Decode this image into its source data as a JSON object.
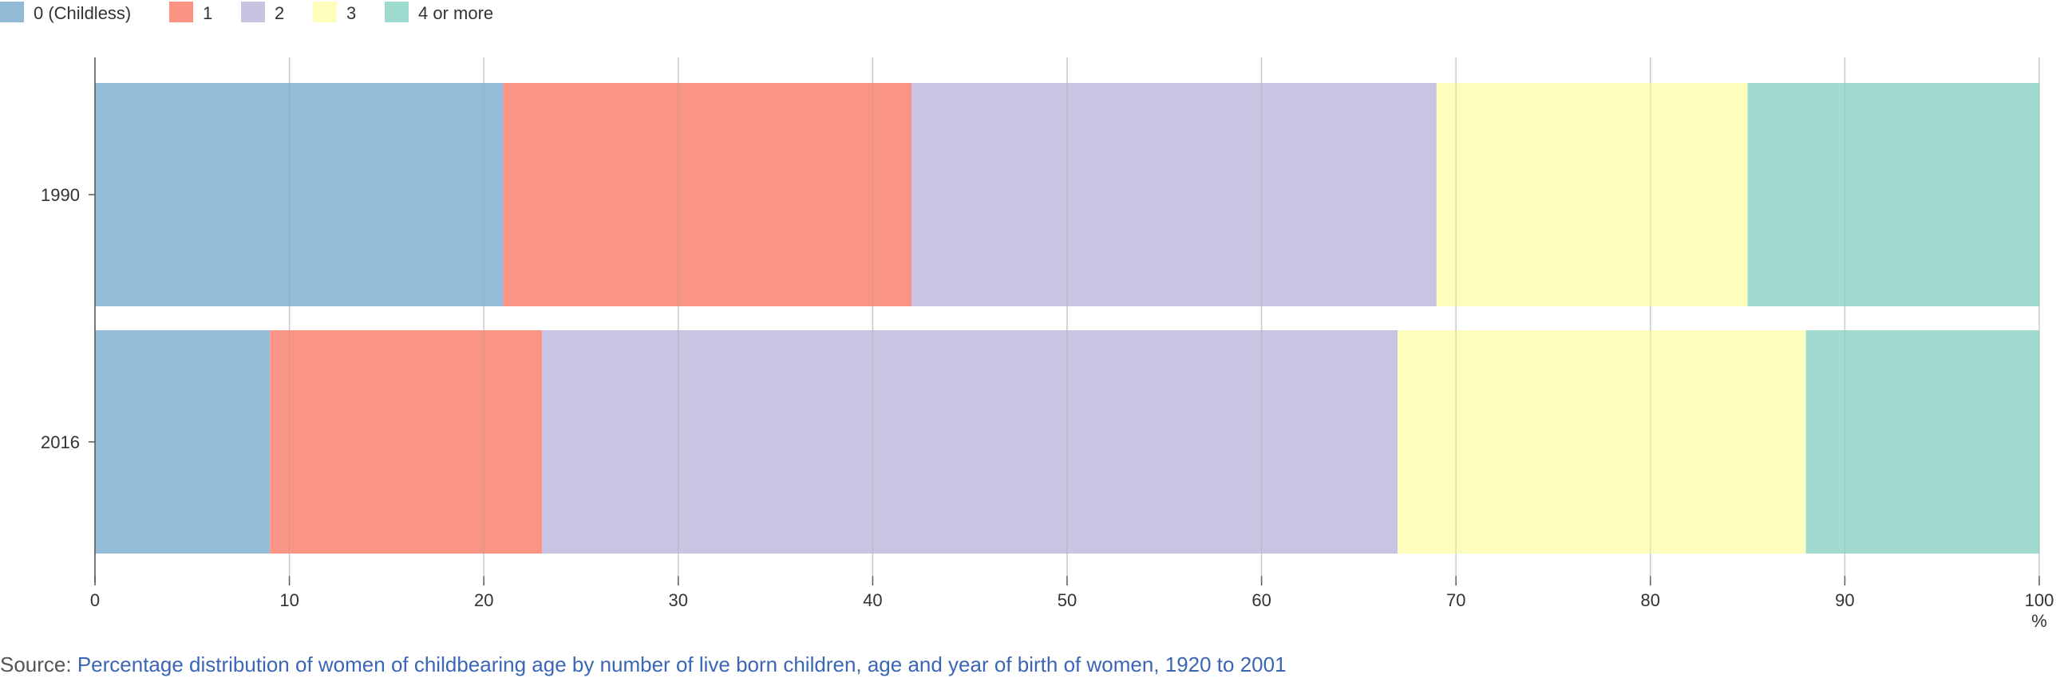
{
  "chart_data": {
    "type": "bar",
    "orientation": "horizontal",
    "stacked": true,
    "categories": [
      "1990",
      "2016"
    ],
    "series": [
      {
        "name": "0 (Childless)",
        "color": "#93bbd8",
        "values": [
          21,
          9
        ]
      },
      {
        "name": "1",
        "color": "#fa9384",
        "values": [
          21,
          14
        ]
      },
      {
        "name": "2",
        "color": "#c7c4e1",
        "values": [
          27,
          44
        ]
      },
      {
        "name": "3",
        "color": "#fdfdbc",
        "values": [
          16,
          21
        ]
      },
      {
        "name": "4 or more",
        "color": "#9fdacf",
        "values": [
          15,
          12
        ]
      }
    ],
    "xlim": [
      0,
      100
    ],
    "xticks": [
      0,
      10,
      20,
      30,
      40,
      50,
      60,
      70,
      80,
      90,
      100
    ],
    "x_unit": "%",
    "grid": true,
    "legend_position": "top-left"
  },
  "source": {
    "prefix": "Source: ",
    "link_text": "Percentage distribution of women of childbearing age by number of live born children, age and year of birth of women, 1920 to 2001"
  }
}
